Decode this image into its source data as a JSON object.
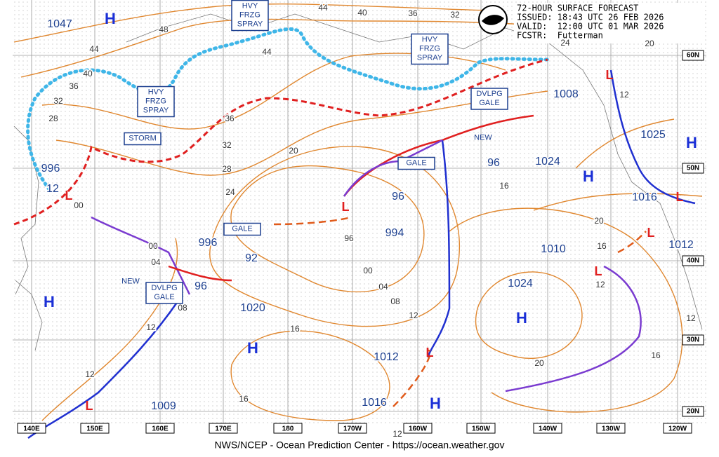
{
  "header": {
    "lines": [
      "72-HOUR SURFACE FORECAST",
      "ISSUED: 18:43 UTC 26 FEB 2026",
      "VALID:  12:00 UTC 01 MAR 2026",
      "FCSTR:  Futterman"
    ]
  },
  "footer": "NWS/NCEP - Ocean Prediction Center - https://ocean.weather.gov",
  "longitudes": [
    "140E",
    "150E",
    "160E",
    "170E",
    "180",
    "170W",
    "160W",
    "150W",
    "140W",
    "130W",
    "120W"
  ],
  "latitudes": [
    "60N",
    "50N",
    "40N",
    "30N",
    "20N"
  ],
  "pressures": [
    "1047",
    "996",
    "12",
    "996",
    "92",
    "96",
    "1020",
    "994",
    "96",
    "96",
    "1024",
    "1008",
    "1025",
    "1016",
    "1012",
    "1010",
    "1024",
    "1012",
    "1016",
    "1009"
  ],
  "centers": [
    "H",
    "H",
    "H",
    "H",
    "H",
    "H",
    "H",
    "L",
    "L",
    "L",
    "L",
    "L",
    "L",
    "L",
    "L"
  ],
  "isobar_labels": [
    "44",
    "40",
    "36",
    "32",
    "48",
    "44",
    "40",
    "36",
    "32",
    "28",
    "24",
    "20",
    "12",
    "36",
    "32",
    "28",
    "24",
    "20",
    "16",
    "20",
    "16",
    "12",
    "00",
    "00",
    "04",
    "08",
    "12",
    "12",
    "96",
    "00",
    "04",
    "08",
    "12",
    "16",
    "20",
    "16",
    "12",
    "16",
    "12",
    "44"
  ],
  "warnings": [
    {
      "lines": [
        "HVY",
        "FRZG",
        "SPRAY"
      ]
    },
    {
      "lines": [
        "HVY",
        "FRZG",
        "SPRAY"
      ]
    },
    {
      "lines": [
        "HVY",
        "FRZG",
        "SPRAY"
      ]
    },
    {
      "lines": [
        "STORM"
      ]
    },
    {
      "lines": [
        "GALE"
      ]
    },
    {
      "lines": [
        "GALE"
      ]
    },
    {
      "lines": [
        "DVLPG",
        "GALE"
      ]
    },
    {
      "lines": [
        "DVLPG",
        "GALE"
      ]
    },
    {
      "lines": [
        "NEW"
      ]
    },
    {
      "lines": [
        "NEW"
      ]
    }
  ]
}
